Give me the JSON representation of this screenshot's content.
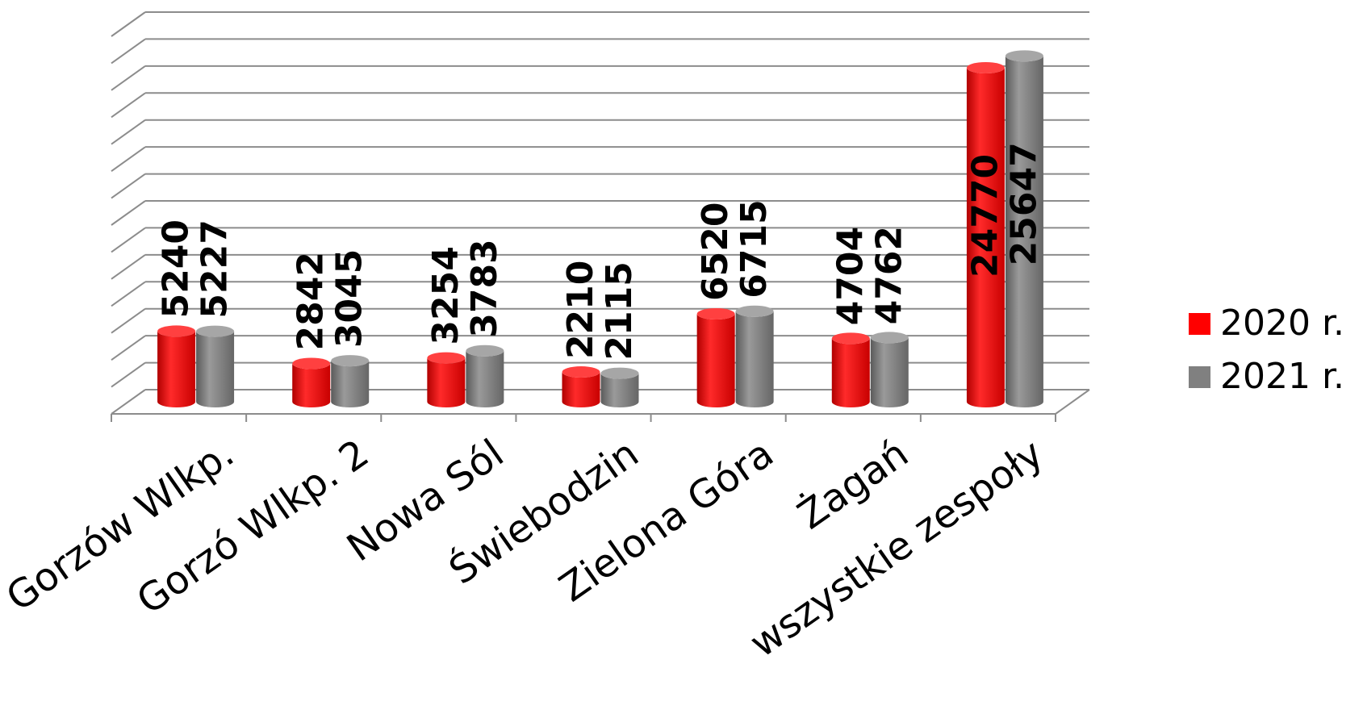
{
  "chart_data": {
    "type": "bar",
    "title": "",
    "xlabel": "",
    "ylabel": "",
    "categories": [
      "Gorzów Wlkp.",
      "Gorzó Wlkp. 2",
      "Nowa Sól",
      "Świebodzin",
      "Zielona Góra",
      "Żagań",
      "wszystkie zespoły"
    ],
    "series": [
      {
        "name": "2020 r.",
        "values": [
          5240,
          2842,
          3254,
          2210,
          6520,
          4704,
          24770
        ],
        "color": "#ff0000"
      },
      {
        "name": "2021 r.",
        "values": [
          5227,
          3045,
          3783,
          2115,
          6715,
          4762,
          25647
        ],
        "color": "#808080"
      }
    ],
    "ylim": [
      0,
      28000
    ],
    "grid": true,
    "legend_position": "right",
    "style": "3d-cylinder"
  }
}
